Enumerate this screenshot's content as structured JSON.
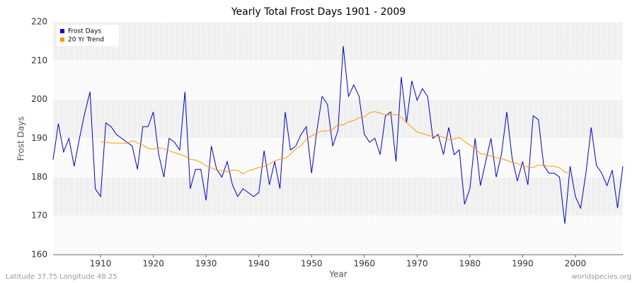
{
  "chart_data": {
    "type": "line",
    "title": "Yearly Total Frost Days 1901 - 2009",
    "x_label": "Year",
    "y_label": "Frost Days",
    "footer_left": "Latitude 37.75 Longitude 48.25",
    "footer_right": "worldspecies.org",
    "x": [
      1901,
      1902,
      1903,
      1904,
      1905,
      1906,
      1907,
      1908,
      1909,
      1910,
      1911,
      1912,
      1913,
      1914,
      1915,
      1916,
      1917,
      1918,
      1919,
      1920,
      1921,
      1922,
      1923,
      1924,
      1925,
      1926,
      1927,
      1928,
      1929,
      1930,
      1931,
      1932,
      1933,
      1934,
      1935,
      1936,
      1937,
      1938,
      1939,
      1940,
      1941,
      1942,
      1943,
      1944,
      1945,
      1946,
      1947,
      1948,
      1949,
      1950,
      1951,
      1952,
      1953,
      1954,
      1955,
      1956,
      1957,
      1958,
      1959,
      1960,
      1961,
      1962,
      1963,
      1964,
      1965,
      1966,
      1967,
      1968,
      1969,
      1970,
      1971,
      1972,
      1973,
      1974,
      1975,
      1976,
      1977,
      1978,
      1979,
      1980,
      1981,
      1982,
      1983,
      1984,
      1985,
      1986,
      1987,
      1988,
      1989,
      1990,
      1991,
      1992,
      1993,
      1994,
      1995,
      1996,
      1997,
      1998,
      1999,
      2000,
      2001,
      2002,
      2003,
      2004,
      2005,
      2006,
      2007,
      2008,
      2009
    ],
    "series": [
      {
        "name": "Frost Days",
        "color": "#0000cc",
        "values": [
          184.5,
          193.8,
          186.5,
          190,
          182.8,
          190,
          196.5,
          202,
          177,
          175,
          194,
          193,
          191,
          190,
          189,
          188,
          182,
          193,
          193,
          196.8,
          186,
          180,
          190,
          189,
          187,
          202,
          177,
          182,
          182,
          174,
          188,
          182,
          180,
          184,
          178,
          175,
          177,
          176,
          175,
          176,
          186.8,
          178,
          184,
          177,
          196.8,
          187,
          188,
          191,
          193,
          181,
          192,
          200.8,
          198.8,
          188,
          192,
          213.8,
          200.8,
          203.8,
          200.8,
          191,
          189,
          190,
          185.8,
          195.8,
          196.8,
          184,
          205.8,
          194,
          204.8,
          199.8,
          202.8,
          200.8,
          190,
          191,
          185.8,
          192.8,
          185.8,
          187,
          173,
          177,
          190,
          177.8,
          184,
          190,
          180,
          186,
          196.8,
          185,
          179,
          184,
          178,
          195.8,
          194.8,
          183,
          181,
          181,
          180,
          168,
          182.8,
          175,
          172,
          181,
          192.8,
          183,
          181,
          177.8,
          181.8,
          172,
          182.8
        ]
      },
      {
        "name": "20 Yr Trend",
        "color": "#ff9900",
        "values": [
          null,
          null,
          null,
          null,
          null,
          null,
          null,
          null,
          null,
          189.2,
          188.9,
          188.8,
          188.8,
          188.8,
          188.7,
          189.4,
          188.8,
          188.3,
          187.4,
          187.2,
          187.6,
          187.3,
          186.8,
          186.3,
          185.9,
          185.4,
          184.6,
          184.4,
          183.8,
          182.9,
          182.4,
          181.8,
          181.7,
          181.4,
          181.8,
          181.8,
          180.9,
          181.6,
          182.0,
          182.5,
          182.7,
          183.4,
          184.2,
          184.6,
          184.8,
          185.9,
          187.3,
          188.1,
          189.8,
          190.6,
          191.4,
          191.9,
          191.9,
          192.3,
          193.6,
          193.4,
          194.2,
          194.6,
          195.3,
          195.5,
          196.6,
          196.9,
          196.5,
          196.1,
          196.0,
          196.1,
          195.4,
          194.0,
          192.9,
          191.6,
          191.3,
          190.8,
          190.5,
          190.6,
          190.3,
          189.6,
          189.8,
          190.3,
          189.2,
          188.3,
          187.3,
          186.1,
          185.8,
          185.4,
          185.0,
          184.8,
          184.3,
          183.8,
          183.5,
          182.9,
          182.6,
          182.5,
          183.1,
          183.1,
          182.8,
          182.8,
          182.4,
          181.3,
          181.1,
          null,
          null,
          null,
          null,
          null,
          null,
          null,
          null,
          null,
          null
        ]
      }
    ],
    "xlim": [
      1901,
      2009
    ],
    "xticks": [
      1910,
      1920,
      1930,
      1940,
      1950,
      1960,
      1970,
      1980,
      1990,
      2000
    ],
    "ylim": [
      160,
      220
    ],
    "yticks": [
      160,
      170,
      180,
      190,
      200,
      210,
      220
    ],
    "grid": true,
    "legend": "top-left"
  }
}
